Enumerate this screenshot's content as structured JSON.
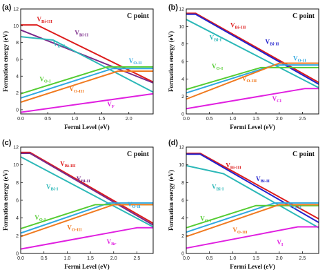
{
  "chart_data": [
    {
      "type": "line",
      "panel": "(a)",
      "point_label": "C point",
      "xlabel": "Fermi Level (eV)",
      "ylabel": "Formation energy (eV)",
      "xlim": [
        0,
        2.45
      ],
      "ylim": [
        -0.5,
        12
      ],
      "xticks": [
        "0.0",
        "0.5",
        "1.0",
        "1.5",
        "2.0"
      ],
      "yticks": [
        "0",
        "2",
        "4",
        "6",
        "8",
        "10",
        "12"
      ],
      "series": [
        {
          "name": "VBi-III",
          "main": "V",
          "sub": "Bi-III",
          "color": "#dd1c1c",
          "x": [
            0,
            0.3,
            2.45
          ],
          "y": [
            10.1,
            10.1,
            3.3
          ]
        },
        {
          "name": "VBi-II",
          "main": "V",
          "sub": "Bi-II",
          "color": "#7a2a8a",
          "x": [
            0,
            2.45
          ],
          "y": [
            9.5,
            3.2
          ]
        },
        {
          "name": "VBi-I",
          "main": "V",
          "sub": "Bi-I",
          "color": "#2cb8b8",
          "x": [
            0,
            0.6,
            2.45
          ],
          "y": [
            8.7,
            8.3,
            2.1
          ]
        },
        {
          "name": "VO-II",
          "main": "V",
          "sub": "O-II",
          "color": "#30a8e0",
          "x": [
            0,
            1.7,
            2.45
          ],
          "y": [
            1.4,
            4.9,
            4.9
          ]
        },
        {
          "name": "VO-I",
          "main": "V",
          "sub": "O-I",
          "color": "#55cc33",
          "x": [
            0,
            1.6,
            2.45
          ],
          "y": [
            1.9,
            5.1,
            5.1
          ]
        },
        {
          "name": "VO-III",
          "main": "V",
          "sub": "O-III",
          "color": "#f07a20",
          "x": [
            0,
            1.8,
            2.45
          ],
          "y": [
            0.9,
            4.6,
            4.6
          ]
        },
        {
          "name": "VF",
          "main": "V",
          "sub": "F",
          "color": "#e020e0",
          "x": [
            0,
            2.45
          ],
          "y": [
            -0.3,
            1.9
          ]
        }
      ]
    },
    {
      "type": "line",
      "panel": "(b)",
      "point_label": "C point",
      "xlabel": "Fermi Level (eV)",
      "ylabel": "Formation energy (eV)",
      "xlim": [
        0,
        2.85
      ],
      "ylim": [
        0,
        12
      ],
      "xticks": [
        "0.0",
        "0.5",
        "1.0",
        "1.5",
        "2.0",
        "2.5"
      ],
      "yticks": [
        "0",
        "2",
        "4",
        "6",
        "8",
        "10",
        "12"
      ],
      "series": [
        {
          "name": "VBi-III",
          "main": "V",
          "sub": "Bi-III",
          "color": "#dd1c1c",
          "x": [
            0,
            0.2,
            2.85
          ],
          "y": [
            11.5,
            11.5,
            3.6
          ]
        },
        {
          "name": "VBi-II",
          "main": "V",
          "sub": "Bi-II",
          "color": "#2222cc",
          "x": [
            0,
            0.2,
            2.85
          ],
          "y": [
            11.4,
            11.4,
            3.4
          ]
        },
        {
          "name": "VBi-I",
          "main": "V",
          "sub": "Bi-I",
          "color": "#2cb8b8",
          "x": [
            0,
            2.85
          ],
          "y": [
            10.8,
            3.0
          ]
        },
        {
          "name": "VO-II",
          "main": "V",
          "sub": "O-II",
          "color": "#30a8e0",
          "x": [
            0,
            1.9,
            2.85
          ],
          "y": [
            2.4,
            5.6,
            5.6
          ]
        },
        {
          "name": "VO-I",
          "main": "V",
          "sub": "O-I",
          "color": "#55cc33",
          "x": [
            0,
            1.6,
            2.85
          ],
          "y": [
            2.8,
            5.3,
            5.3
          ]
        },
        {
          "name": "VO-III",
          "main": "V",
          "sub": "O-III",
          "color": "#f07a20",
          "x": [
            0,
            2.0,
            2.85
          ],
          "y": [
            1.7,
            5.8,
            5.8
          ]
        },
        {
          "name": "VCl",
          "main": "V",
          "sub": "Cl",
          "color": "#e020e0",
          "x": [
            0,
            2.55,
            2.85
          ],
          "y": [
            0.6,
            2.9,
            2.9
          ]
        }
      ]
    },
    {
      "type": "line",
      "panel": "(c)",
      "point_label": "C point",
      "xlabel": "Fermi Level (eV)",
      "ylabel": "Formation energy (eV)",
      "xlim": [
        0,
        2.85
      ],
      "ylim": [
        0,
        12
      ],
      "xticks": [
        "0.0",
        "0.5",
        "1.0",
        "1.5",
        "2.0",
        "2.5"
      ],
      "yticks": [
        "0",
        "2",
        "4",
        "6",
        "8",
        "10",
        "12"
      ],
      "series": [
        {
          "name": "VBi-III",
          "main": "V",
          "sub": "Bi-III",
          "color": "#dd1c1c",
          "x": [
            0,
            0.2,
            2.85
          ],
          "y": [
            11.4,
            11.4,
            3.4
          ]
        },
        {
          "name": "VBi-II",
          "main": "V",
          "sub": "Bi-II",
          "color": "#7a2a8a",
          "x": [
            0,
            0.2,
            2.85
          ],
          "y": [
            11.3,
            11.3,
            3.2
          ]
        },
        {
          "name": "VBi-I",
          "main": "V",
          "sub": "Bi-I",
          "color": "#2cb8b8",
          "x": [
            0,
            2.85
          ],
          "y": [
            10.9,
            3.0
          ]
        },
        {
          "name": "VO-II",
          "main": "V",
          "sub": "O-II",
          "color": "#30a8e0",
          "x": [
            0,
            1.9,
            2.85
          ],
          "y": [
            2.3,
            5.7,
            5.7
          ]
        },
        {
          "name": "VO-I",
          "main": "V",
          "sub": "O-I",
          "color": "#55cc33",
          "x": [
            0,
            1.6,
            2.85
          ],
          "y": [
            2.8,
            5.5,
            5.5
          ]
        },
        {
          "name": "VO-III",
          "main": "V",
          "sub": "O-III",
          "color": "#f07a20",
          "x": [
            0,
            2.0,
            2.85
          ],
          "y": [
            1.9,
            5.5,
            5.5
          ]
        },
        {
          "name": "VBr",
          "main": "V",
          "sub": "Br",
          "color": "#e020e0",
          "x": [
            0,
            2.5,
            2.85
          ],
          "y": [
            0.5,
            2.9,
            2.9
          ]
        }
      ]
    },
    {
      "type": "line",
      "panel": "(d)",
      "point_label": "C point",
      "xlabel": "Fermi Level (eV)",
      "ylabel": "Formation energy (eV)",
      "xlim": [
        0,
        2.85
      ],
      "ylim": [
        0,
        12
      ],
      "xticks": [
        "0.0",
        "0.5",
        "1.0",
        "1.5",
        "2.0",
        "2.5"
      ],
      "yticks": [
        "0",
        "2",
        "4",
        "6",
        "8",
        "10",
        "12"
      ],
      "series": [
        {
          "name": "VBi-III",
          "main": "V",
          "sub": "Bi-III",
          "color": "#dd1c1c",
          "x": [
            0,
            0.3,
            2.85
          ],
          "y": [
            11.3,
            11.3,
            3.9
          ]
        },
        {
          "name": "VBi-II",
          "main": "V",
          "sub": "Bi-II",
          "color": "#2222cc",
          "x": [
            0,
            0.3,
            2.85
          ],
          "y": [
            11.2,
            11.2,
            3.5
          ]
        },
        {
          "name": "VBi-I",
          "main": "V",
          "sub": "Bi-I",
          "color": "#2cb8b8",
          "x": [
            0,
            0.8,
            2.85
          ],
          "y": [
            9.9,
            9.0,
            2.9
          ]
        },
        {
          "name": "VO-II",
          "main": "V",
          "sub": "O-II",
          "color": "#30a8e0",
          "x": [
            0,
            1.9,
            2.85
          ],
          "y": [
            2.4,
            5.7,
            5.7
          ]
        },
        {
          "name": "VO-I",
          "main": "V",
          "sub": "O-I",
          "color": "#55cc33",
          "x": [
            0,
            1.5,
            2.85
          ],
          "y": [
            2.9,
            5.4,
            5.4
          ]
        },
        {
          "name": "VO-III",
          "main": "V",
          "sub": "O-III",
          "color": "#f07a20",
          "x": [
            0,
            2.0,
            2.85
          ],
          "y": [
            1.9,
            5.5,
            5.5
          ]
        },
        {
          "name": "VI",
          "main": "V",
          "sub": "I",
          "color": "#e020e0",
          "x": [
            0,
            2.4,
            2.85
          ],
          "y": [
            0.6,
            3.0,
            3.0
          ]
        }
      ]
    }
  ]
}
